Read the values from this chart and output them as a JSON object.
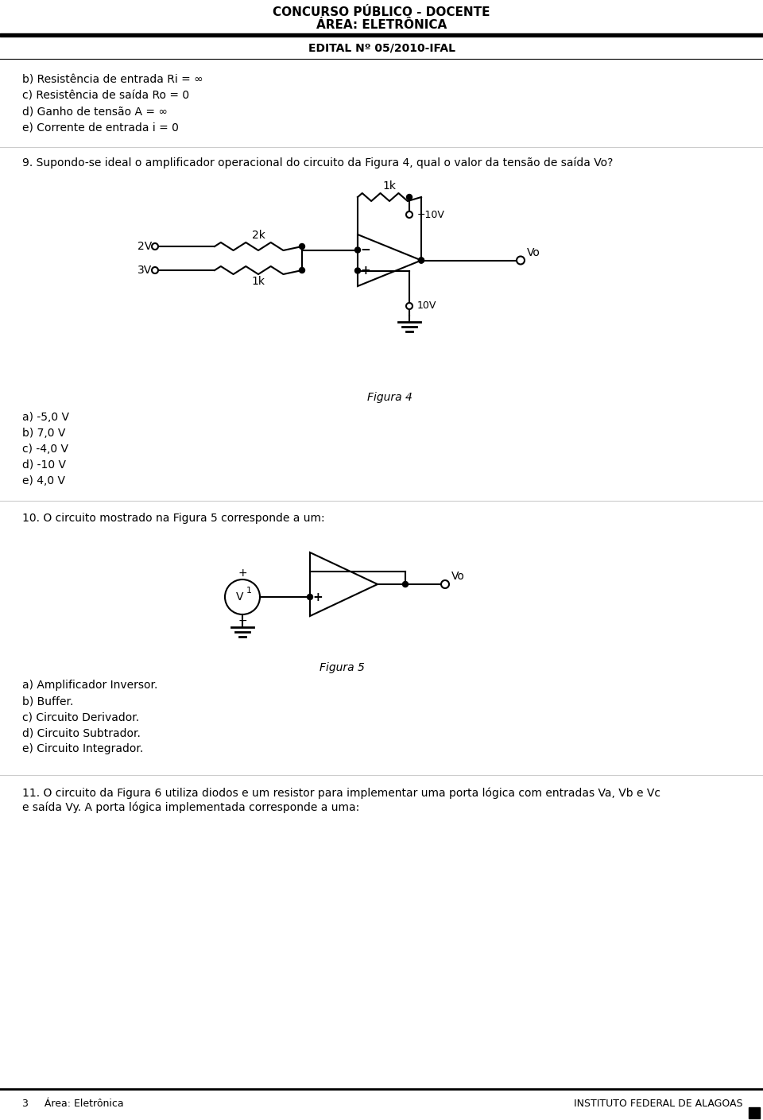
{
  "title1": "CONCURSO PÚBLICO - DOCENTE",
  "title2": "ÁREA: ELETRÔNICA",
  "title3": "EDITAL Nº 05/2010-IFAL",
  "options_q8": [
    "b) Resistência de entrada Ri = ∞",
    "c) Resistência de saída Ro = 0",
    "d) Ganho de tensão A = ∞",
    "e) Corrente de entrada i = 0"
  ],
  "q9_text": "9. Supondo-se ideal o amplificador operacional do circuito da Figura 4, qual o valor da tensão de saída Vo?",
  "figura4_label": "Figura 4",
  "options_q9": [
    "a) -5,0 V",
    "b) 7,0 V",
    "c) -4,0 V",
    "d) -10 V",
    "e) 4,0 V"
  ],
  "q10_text": "10. O circuito mostrado na Figura 5 corresponde a um:",
  "figura5_label": "Figura 5",
  "options_q10": [
    "a) Amplificador Inversor.",
    "b) Buffer.",
    "c) Circuito Derivador.",
    "d) Circuito Subtrador.",
    "e) Circuito Integrador."
  ],
  "q11_line1": "11. O circuito da Figura 6 utiliza diodos e um resistor para implementar uma porta lógica com entradas Va, Vb e Vc",
  "q11_line2": "e saída Vy. A porta lógica implementada corresponde a uma:",
  "footer_left": "3     Área: Eletrônica",
  "footer_right": "INSTITUTO FEDERAL DE ALAGOAS",
  "bg_color": "#ffffff",
  "text_color": "#000000"
}
